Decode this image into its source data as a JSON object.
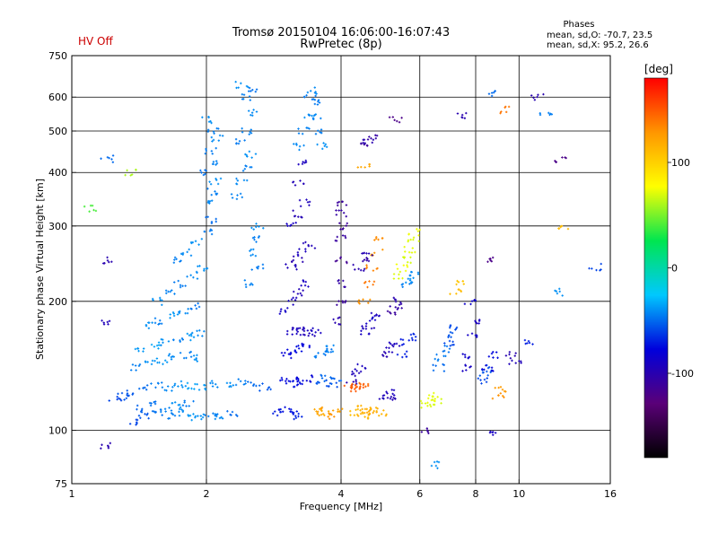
{
  "status": {
    "hv_label": "HV Off",
    "hv_color": "#cc0000"
  },
  "chart_data": {
    "type": "scatter",
    "title": "Tromsø 20150104 16:06:00-16:07:43",
    "subtitle": "RwPretec (8p)",
    "xlabel": "Frequency [MHz]",
    "ylabel": "Stationary phase Virtual Height [km]",
    "xscale": "log",
    "yscale": "log",
    "xlim": [
      1,
      16
    ],
    "ylim": [
      75,
      750
    ],
    "xticks": [
      1,
      2,
      4,
      6,
      8,
      10,
      16
    ],
    "xgrid": [
      2,
      4,
      6,
      8,
      10
    ],
    "yticks": [
      75,
      100,
      200,
      300,
      400,
      500,
      600,
      750
    ],
    "ygrid": [
      100,
      200,
      300,
      400,
      500,
      600
    ],
    "grid": true,
    "phases_box": {
      "title": "Phases",
      "line1": "mean, sd,O: -70.7, 23.5",
      "line2": "mean, sd,X:  95.2, 26.6"
    },
    "colorbar": {
      "unit": "[deg]",
      "range": [
        -180,
        180
      ],
      "ticks": [
        100,
        0,
        -100
      ],
      "scale": [
        "#000000",
        "#5a0078",
        "#0000dc",
        "#00c8ff",
        "#00e650",
        "#ffff00",
        "#ff9600",
        "#ff0000"
      ]
    },
    "points": [
      [
        1.38,
        105,
        -60
      ],
      [
        1.45,
        108,
        -55
      ],
      [
        1.55,
        110,
        -48
      ],
      [
        1.65,
        108,
        -45
      ],
      [
        1.75,
        110,
        -42
      ],
      [
        1.85,
        107,
        -38
      ],
      [
        1.95,
        108,
        -40
      ],
      [
        2.05,
        109,
        -45
      ],
      [
        2.15,
        108,
        -42
      ],
      [
        2.3,
        110,
        -50
      ],
      [
        1.42,
        112,
        -52
      ],
      [
        1.52,
        115,
        -48
      ],
      [
        1.62,
        112,
        -44
      ],
      [
        1.72,
        114,
        -40
      ],
      [
        1.82,
        116,
        -46
      ],
      [
        1.35,
        122,
        -55
      ],
      [
        1.45,
        125,
        -50
      ],
      [
        1.55,
        128,
        -45
      ],
      [
        1.65,
        126,
        -42
      ],
      [
        1.75,
        128,
        -40
      ],
      [
        1.85,
        127,
        -35
      ],
      [
        1.95,
        126,
        -38
      ],
      [
        2.1,
        128,
        -42
      ],
      [
        2.25,
        127,
        -40
      ],
      [
        2.4,
        130,
        -45
      ],
      [
        2.55,
        128,
        -50
      ],
      [
        2.7,
        126,
        -55
      ],
      [
        1.25,
        118,
        -60
      ],
      [
        1.3,
        120,
        -55
      ],
      [
        1.4,
        140,
        -45
      ],
      [
        1.5,
        143,
        -40
      ],
      [
        1.6,
        145,
        -38
      ],
      [
        1.7,
        148,
        -42
      ],
      [
        1.8,
        150,
        -45
      ],
      [
        1.9,
        147,
        -40
      ],
      [
        1.42,
        155,
        -38
      ],
      [
        1.52,
        158,
        -35
      ],
      [
        1.62,
        160,
        -40
      ],
      [
        1.72,
        162,
        -45
      ],
      [
        1.82,
        165,
        -38
      ],
      [
        1.92,
        168,
        -42
      ],
      [
        1.48,
        175,
        -40
      ],
      [
        1.58,
        180,
        -45
      ],
      [
        1.68,
        185,
        -38
      ],
      [
        1.78,
        190,
        -42
      ],
      [
        1.88,
        195,
        -48
      ],
      [
        1.55,
        200,
        -40
      ],
      [
        1.65,
        210,
        -44
      ],
      [
        1.75,
        220,
        -46
      ],
      [
        1.85,
        230,
        -42
      ],
      [
        1.95,
        240,
        -40
      ],
      [
        1.7,
        250,
        -45
      ],
      [
        1.8,
        260,
        -42
      ],
      [
        1.9,
        275,
        -40
      ],
      [
        2.0,
        290,
        -46
      ],
      [
        2.05,
        310,
        -50
      ],
      [
        2.0,
        340,
        -42
      ],
      [
        2.05,
        360,
        -45
      ],
      [
        2.1,
        380,
        -40
      ],
      [
        2.0,
        400,
        -48
      ],
      [
        2.1,
        420,
        -44
      ],
      [
        2.05,
        450,
        -46
      ],
      [
        2.12,
        480,
        -42
      ],
      [
        2.08,
        500,
        -45
      ],
      [
        2.02,
        530,
        -40
      ],
      [
        2.35,
        350,
        -44
      ],
      [
        2.4,
        380,
        -42
      ],
      [
        2.45,
        410,
        -45
      ],
      [
        2.5,
        440,
        -40
      ],
      [
        2.38,
        470,
        -46
      ],
      [
        2.45,
        500,
        -44
      ],
      [
        2.52,
        550,
        -42
      ],
      [
        2.48,
        600,
        -45
      ],
      [
        2.55,
        620,
        -48
      ],
      [
        2.4,
        640,
        -40
      ],
      [
        2.5,
        260,
        -42
      ],
      [
        2.55,
        280,
        -45
      ],
      [
        2.6,
        300,
        -40
      ],
      [
        2.6,
        240,
        -46
      ],
      [
        2.5,
        220,
        -44
      ],
      [
        2.9,
        110,
        -70
      ],
      [
        3.0,
        112,
        -75
      ],
      [
        3.1,
        110,
        -72
      ],
      [
        3.2,
        108,
        -68
      ],
      [
        3.0,
        130,
        -75
      ],
      [
        3.1,
        132,
        -78
      ],
      [
        3.2,
        128,
        -72
      ],
      [
        3.3,
        130,
        -76
      ],
      [
        3.4,
        132,
        -80
      ],
      [
        3.0,
        150,
        -80
      ],
      [
        3.1,
        152,
        -76
      ],
      [
        3.2,
        155,
        -74
      ],
      [
        3.3,
        158,
        -78
      ],
      [
        3.1,
        170,
        -90
      ],
      [
        3.2,
        172,
        -95
      ],
      [
        3.3,
        170,
        -92
      ],
      [
        3.4,
        168,
        -96
      ],
      [
        3.5,
        170,
        -90
      ],
      [
        3.0,
        190,
        -88
      ],
      [
        3.1,
        200,
        -92
      ],
      [
        3.2,
        210,
        -96
      ],
      [
        3.3,
        220,
        -90
      ],
      [
        3.1,
        240,
        -95
      ],
      [
        3.2,
        250,
        -100
      ],
      [
        3.3,
        260,
        -92
      ],
      [
        3.4,
        270,
        -96
      ],
      [
        3.1,
        300,
        -90
      ],
      [
        3.2,
        320,
        -98
      ],
      [
        3.3,
        340,
        -94
      ],
      [
        3.2,
        380,
        -96
      ],
      [
        3.3,
        420,
        -92
      ],
      [
        3.2,
        460,
        -42
      ],
      [
        3.3,
        500,
        -44
      ],
      [
        3.4,
        540,
        -40
      ],
      [
        3.5,
        580,
        -46
      ],
      [
        3.45,
        620,
        -42
      ],
      [
        3.55,
        500,
        -45
      ],
      [
        3.6,
        460,
        -40
      ],
      [
        3.5,
        540,
        -44
      ],
      [
        3.4,
        600,
        -46
      ],
      [
        3.5,
        110,
        120
      ],
      [
        3.6,
        112,
        125
      ],
      [
        3.7,
        110,
        118
      ],
      [
        3.8,
        108,
        130
      ],
      [
        3.9,
        110,
        122
      ],
      [
        3.6,
        130,
        -55
      ],
      [
        3.7,
        132,
        -50
      ],
      [
        3.8,
        128,
        -58
      ],
      [
        3.9,
        130,
        -52
      ],
      [
        3.6,
        150,
        -45
      ],
      [
        3.7,
        152,
        -48
      ],
      [
        3.8,
        155,
        -42
      ],
      [
        3.9,
        180,
        -100
      ],
      [
        4.0,
        200,
        -110
      ],
      [
        4.0,
        220,
        -105
      ],
      [
        4.0,
        250,
        -115
      ],
      [
        4.0,
        280,
        -108
      ],
      [
        4.05,
        300,
        -112
      ],
      [
        4.0,
        320,
        -106
      ],
      [
        4.05,
        340,
        -110
      ],
      [
        4.2,
        130,
        -100
      ],
      [
        4.3,
        135,
        -95
      ],
      [
        4.4,
        140,
        -92
      ],
      [
        4.3,
        110,
        110
      ],
      [
        4.4,
        112,
        115
      ],
      [
        4.5,
        110,
        118
      ],
      [
        4.6,
        108,
        112
      ],
      [
        4.7,
        110,
        120
      ],
      [
        4.8,
        112,
        116
      ],
      [
        4.9,
        110,
        114
      ],
      [
        4.2,
        125,
        150
      ],
      [
        4.3,
        128,
        148
      ],
      [
        4.4,
        126,
        152
      ],
      [
        4.5,
        128,
        145
      ],
      [
        4.5,
        170,
        -90
      ],
      [
        4.6,
        175,
        -95
      ],
      [
        4.7,
        180,
        -88
      ],
      [
        4.8,
        185,
        -92
      ],
      [
        4.5,
        200,
        130
      ],
      [
        4.6,
        220,
        140
      ],
      [
        4.7,
        240,
        135
      ],
      [
        4.8,
        260,
        128
      ],
      [
        4.9,
        280,
        132
      ],
      [
        4.4,
        240,
        -100
      ],
      [
        4.5,
        250,
        -105
      ],
      [
        4.6,
        260,
        -98
      ],
      [
        4.5,
        460,
        -110
      ],
      [
        4.6,
        470,
        -100
      ],
      [
        4.7,
        480,
        -106
      ],
      [
        5.0,
        120,
        -95
      ],
      [
        5.1,
        122,
        -92
      ],
      [
        5.2,
        120,
        -98
      ],
      [
        5.1,
        150,
        -100
      ],
      [
        5.2,
        155,
        -95
      ],
      [
        5.3,
        160,
        -92
      ],
      [
        5.2,
        190,
        -110
      ],
      [
        5.3,
        195,
        -105
      ],
      [
        5.4,
        200,
        -100
      ],
      [
        5.4,
        230,
        70
      ],
      [
        5.5,
        240,
        75
      ],
      [
        5.6,
        250,
        68
      ],
      [
        5.7,
        265,
        72
      ],
      [
        5.8,
        280,
        70
      ],
      [
        5.85,
        290,
        74
      ],
      [
        5.6,
        220,
        -45
      ],
      [
        5.7,
        225,
        -40
      ],
      [
        5.8,
        230,
        -42
      ],
      [
        5.5,
        150,
        -70
      ],
      [
        5.6,
        160,
        -72
      ],
      [
        5.7,
        165,
        -68
      ],
      [
        6.2,
        115,
        70
      ],
      [
        6.3,
        118,
        74
      ],
      [
        6.4,
        120,
        72
      ],
      [
        6.5,
        116,
        68
      ],
      [
        6.6,
        140,
        -50
      ],
      [
        6.7,
        148,
        -45
      ],
      [
        6.8,
        155,
        -48
      ],
      [
        7.0,
        160,
        -60
      ],
      [
        7.1,
        168,
        -55
      ],
      [
        7.2,
        175,
        -58
      ],
      [
        7.6,
        140,
        -90
      ],
      [
        7.7,
        150,
        -86
      ],
      [
        7.8,
        165,
        -88
      ],
      [
        7.9,
        180,
        -92
      ],
      [
        7.8,
        200,
        -85
      ],
      [
        7.2,
        210,
        110
      ],
      [
        7.3,
        220,
        105
      ],
      [
        8.3,
        130,
        -60
      ],
      [
        8.4,
        135,
        -55
      ],
      [
        8.5,
        140,
        -58
      ],
      [
        9.0,
        120,
        130
      ],
      [
        9.1,
        125,
        126
      ],
      [
        9.6,
        150,
        -100
      ],
      [
        9.8,
        145,
        -95
      ],
      [
        8.5,
        140,
        -80
      ],
      [
        8.7,
        150,
        -76
      ],
      [
        10.6,
        160,
        -70
      ],
      [
        12.2,
        210,
        -40
      ],
      [
        12.5,
        300,
        110
      ],
      [
        11.5,
        550,
        -45
      ],
      [
        8.6,
        610,
        -50
      ],
      [
        9.2,
        560,
        140
      ],
      [
        8.7,
        250,
        -120
      ],
      [
        11.0,
        600,
        -100
      ],
      [
        12.4,
        430,
        -120
      ],
      [
        14.8,
        240,
        -60
      ],
      [
        1.1,
        330,
        40
      ],
      [
        1.2,
        430,
        -50
      ],
      [
        1.35,
        400,
        60
      ],
      [
        1.2,
        250,
        -100
      ],
      [
        1.2,
        180,
        -95
      ],
      [
        1.18,
        92,
        -100
      ],
      [
        6.5,
        83,
        -40
      ],
      [
        6.2,
        100,
        -110
      ],
      [
        8.8,
        99,
        -90
      ],
      [
        5.3,
        530,
        -120
      ],
      [
        4.5,
        410,
        120
      ],
      [
        7.5,
        540,
        -100
      ]
    ]
  }
}
